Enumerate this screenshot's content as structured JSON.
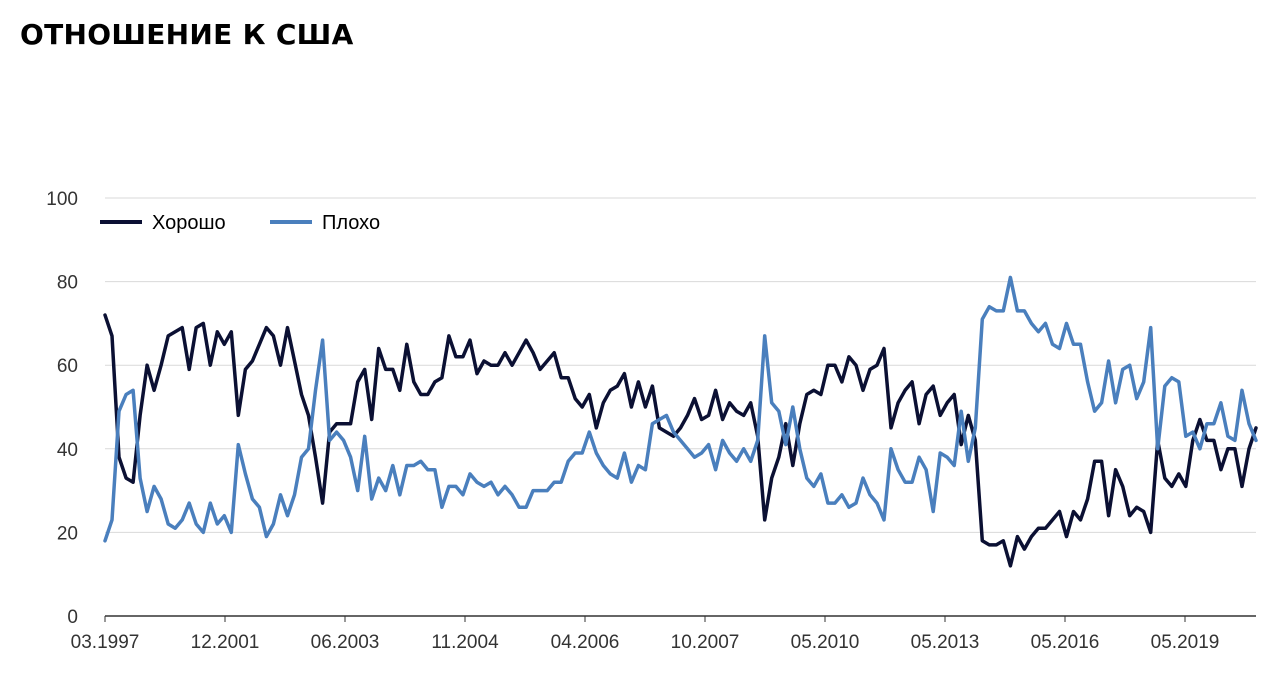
{
  "title": "ОТНОШЕНИЕ К США",
  "chart_data": {
    "type": "line",
    "title": "ОТНОШЕНИЕ К США",
    "xlabel": "",
    "ylabel": "",
    "ylim": [
      0,
      100
    ],
    "yticks": [
      0,
      20,
      40,
      60,
      80,
      100
    ],
    "xtick_labels": [
      "03.1997",
      "12.2001",
      "06.2003",
      "11.2004",
      "04.2006",
      "10.2007",
      "05.2010",
      "05.2013",
      "05.2016",
      "05.2019"
    ],
    "grid": true,
    "legend_position": "top-left",
    "series": [
      {
        "name": "Хорошо",
        "color": "#0b1033",
        "values": [
          72,
          67,
          38,
          33,
          32,
          48,
          60,
          54,
          60,
          67,
          68,
          69,
          59,
          69,
          70,
          60,
          68,
          65,
          68,
          48,
          59,
          61,
          65,
          69,
          67,
          60,
          69,
          61,
          53,
          48,
          38,
          27,
          44,
          46,
          46,
          46,
          56,
          59,
          47,
          64,
          59,
          59,
          54,
          65,
          56,
          53,
          53,
          56,
          57,
          67,
          62,
          62,
          66,
          58,
          61,
          60,
          60,
          63,
          60,
          63,
          66,
          63,
          59,
          61,
          63,
          57,
          57,
          52,
          50,
          53,
          45,
          51,
          54,
          55,
          58,
          50,
          56,
          50,
          55,
          45,
          44,
          43,
          45,
          48,
          52,
          47,
          48,
          54,
          47,
          51,
          49,
          48,
          51,
          43,
          23,
          33,
          38,
          46,
          36,
          46,
          53,
          54,
          53,
          60,
          60,
          56,
          62,
          60,
          54,
          59,
          60,
          64,
          45,
          51,
          54,
          56,
          46,
          53,
          55,
          48,
          51,
          53,
          41,
          48,
          42,
          18,
          17,
          17,
          18,
          12,
          19,
          16,
          19,
          21,
          21,
          23,
          25,
          19,
          25,
          23,
          28,
          37,
          37,
          24,
          35,
          31,
          24,
          26,
          25,
          20,
          42,
          33,
          31,
          34,
          31,
          42,
          47,
          42,
          42,
          35,
          40,
          40,
          31,
          40,
          45
        ]
      },
      {
        "name": "Плохо",
        "color": "#4a7fbd",
        "values": [
          18,
          23,
          49,
          53,
          54,
          33,
          25,
          31,
          28,
          22,
          21,
          23,
          27,
          22,
          20,
          27,
          22,
          24,
          20,
          41,
          34,
          28,
          26,
          19,
          22,
          29,
          24,
          29,
          38,
          40,
          54,
          66,
          42,
          44,
          42,
          38,
          30,
          43,
          28,
          33,
          30,
          36,
          29,
          36,
          36,
          37,
          35,
          35,
          26,
          31,
          31,
          29,
          34,
          32,
          31,
          32,
          29,
          31,
          29,
          26,
          26,
          30,
          30,
          30,
          32,
          32,
          37,
          39,
          39,
          44,
          39,
          36,
          34,
          33,
          39,
          32,
          36,
          35,
          46,
          47,
          48,
          44,
          42,
          40,
          38,
          39,
          41,
          35,
          42,
          39,
          37,
          40,
          37,
          42,
          67,
          51,
          49,
          41,
          50,
          40,
          33,
          31,
          34,
          27,
          27,
          29,
          26,
          27,
          33,
          29,
          27,
          23,
          40,
          35,
          32,
          32,
          38,
          35,
          25,
          39,
          38,
          36,
          49,
          37,
          45,
          71,
          74,
          73,
          73,
          81,
          73,
          73,
          70,
          68,
          70,
          65,
          64,
          70,
          65,
          65,
          56,
          49,
          51,
          61,
          51,
          59,
          60,
          52,
          56,
          69,
          40,
          55,
          57,
          56,
          43,
          44,
          40,
          46,
          46,
          51,
          43,
          42,
          54,
          46,
          42
        ]
      }
    ]
  }
}
